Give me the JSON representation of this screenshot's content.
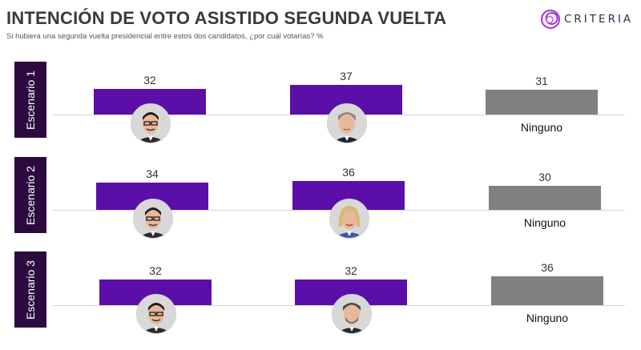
{
  "header": {
    "title": "INTENCIÓN DE VOTO ASISTIDO SEGUNDA VUELTA",
    "subtitle": "Si hubiera una segunda vuelta presidencial entre estos dos candidatos, ¿por cuál votarías? %",
    "logo_text": "CRITERIA"
  },
  "colors": {
    "candidate_bar": "#5b0fa8",
    "ninguno_bar": "#808080",
    "label_bg": "#2c0a3f"
  },
  "chart_data": [
    {
      "type": "bar",
      "title": "Escenario 1",
      "categories": [
        "candidate-a",
        "candidate-b",
        "Ninguno"
      ],
      "values": [
        32,
        37,
        31
      ],
      "avatars": [
        "man-glasses-dark-hair",
        "man-gray-hair",
        ""
      ]
    },
    {
      "type": "bar",
      "title": "Escenario 2",
      "categories": [
        "candidate-a",
        "candidate-c",
        "Ninguno"
      ],
      "values": [
        34,
        36,
        30
      ],
      "avatars": [
        "man-glasses-dark-hair",
        "woman-blonde-hair",
        ""
      ]
    },
    {
      "type": "bar",
      "title": "Escenario 3",
      "categories": [
        "candidate-a",
        "candidate-d",
        "Ninguno"
      ],
      "values": [
        32,
        32,
        36
      ],
      "avatars": [
        "man-glasses-dark-hair",
        "man-gray-beard",
        ""
      ]
    }
  ]
}
